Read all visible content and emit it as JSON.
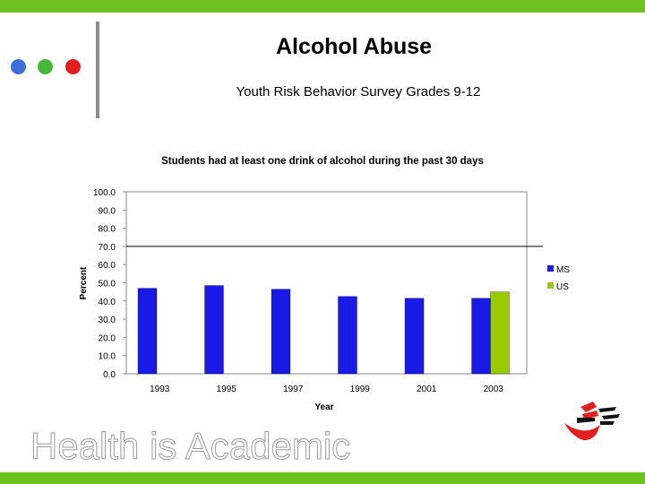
{
  "slide": {
    "title": "Alcohol Abuse",
    "subtitle": "Youth Risk Behavior Survey Grades 9-12",
    "footer_text": "Health is Academic",
    "dot_colors": [
      "#3f6fd6",
      "#45b83a",
      "#e31e1e"
    ],
    "accent_color": "#6ec21f"
  },
  "chart_data": {
    "type": "bar",
    "title": "Students had at least one drink of alcohol during the past 30 days",
    "xlabel": "Year",
    "ylabel": "Percent",
    "categories": [
      "1993",
      "1995",
      "1997",
      "1999",
      "2001",
      "2003"
    ],
    "y_ticks": [
      "0.0",
      "10.0",
      "20.0",
      "30.0",
      "40.0",
      "50.0",
      "60.0",
      "70.0",
      "80.0",
      "90.0",
      "100.0"
    ],
    "ylim": [
      0,
      100
    ],
    "reference_line": 70,
    "legend_position": "right",
    "grid": false,
    "series": [
      {
        "name": "MS",
        "color": "#1a1ae6",
        "values": [
          47,
          48.5,
          46.5,
          42.5,
          41.5,
          41.5
        ]
      },
      {
        "name": "US",
        "color": "#99cc00",
        "values": [
          null,
          null,
          null,
          null,
          null,
          45
        ]
      }
    ]
  }
}
